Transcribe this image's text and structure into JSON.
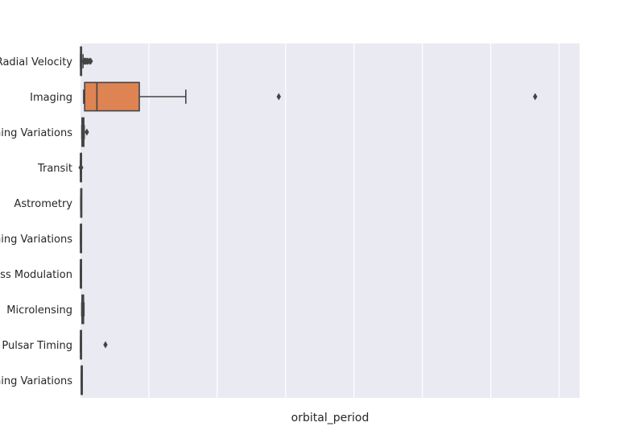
{
  "chart_data": {
    "type": "boxplot",
    "orientation": "horizontal",
    "title": "",
    "xlabel": "orbital_period",
    "ylabel": "",
    "xlim": [
      0,
      730000
    ],
    "grid": true,
    "x_tick_labels_visible": false,
    "colors": {
      "background": "#eaeaf2",
      "grid": "#ffffff",
      "box_line": "#444444",
      "imaging_fill": "#dd8452"
    },
    "categories": [
      "Radial Velocity",
      "Imaging",
      "Eclipse Timing Variations",
      "Transit",
      "Astrometry",
      "Transit Timing Variations",
      "Orbital Brightness Modulation",
      "Microlensing",
      "Pulsar Timing",
      "Pulsation Timing Variations"
    ],
    "boxes": [
      {
        "category": "Radial Velocity",
        "min": 1,
        "q1": 40,
        "median": 360,
        "q3": 1500,
        "max": 3700,
        "outliers": [
          4300,
          5300,
          6100,
          7100,
          8300,
          10000,
          11000,
          13500,
          15000
        ]
      },
      {
        "category": "Imaging",
        "min": 4600,
        "q1": 6100,
        "median": 24000,
        "q3": 86000,
        "max": 154000,
        "outliers": [
          290000,
          665000
        ]
      },
      {
        "category": "Eclipse Timing Variations",
        "min": 1900,
        "q1": 2200,
        "median": 3600,
        "q3": 4900,
        "max": 5500,
        "outliers": [
          9300
        ]
      },
      {
        "category": "Transit",
        "min": 0.3,
        "q1": 3,
        "median": 6,
        "q3": 25,
        "max": 60,
        "outliers": [
          200,
          700,
          1000
        ]
      },
      {
        "category": "Astrometry",
        "min": 246,
        "q1": 390,
        "median": 630,
        "q3": 880,
        "max": 1016,
        "outliers": []
      },
      {
        "category": "Transit Timing Variations",
        "min": 22,
        "q1": 40,
        "median": 57,
        "q3": 120,
        "max": 160,
        "outliers": []
      },
      {
        "category": "Orbital Brightness Modulation",
        "min": 0.24,
        "q1": 0.28,
        "median": 0.34,
        "q3": 0.5,
        "max": 1.5,
        "outliers": []
      },
      {
        "category": "Microlensing",
        "min": 1800,
        "q1": 2200,
        "median": 3300,
        "q3": 4500,
        "max": 5100,
        "outliers": []
      },
      {
        "category": "Pulsar Timing",
        "min": 0.09,
        "q1": 25,
        "median": 66,
        "q3": 98,
        "max": 98,
        "outliers": [
          36500
        ]
      },
      {
        "category": "Pulsation Timing Variations",
        "min": 1170,
        "q1": 1170,
        "median": 1170,
        "q3": 1170,
        "max": 1170,
        "outliers": []
      }
    ]
  }
}
